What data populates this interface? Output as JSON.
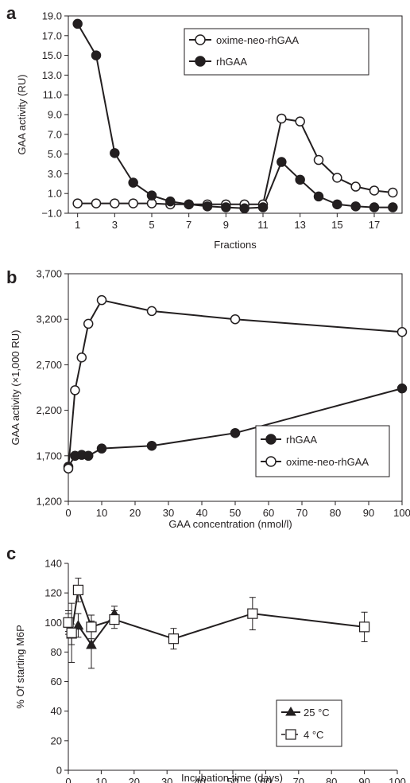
{
  "chart_data": [
    {
      "panel": "a",
      "type": "line",
      "xlabel": "Fractions",
      "ylabel": "GAA activity (RU)",
      "xlim": [
        0.5,
        18.5
      ],
      "ylim": [
        -1.0,
        19.0
      ],
      "xticks": [
        1,
        3,
        5,
        7,
        9,
        11,
        13,
        15,
        17
      ],
      "xtick_labels": [
        "1",
        "3",
        "5",
        "7",
        "9",
        "11",
        "13",
        "15",
        "17"
      ],
      "yticks": [
        -1.0,
        1.0,
        3.0,
        5.0,
        7.0,
        9.0,
        11.0,
        13.0,
        15.0,
        17.0,
        19.0
      ],
      "ytick_labels": [
        "−1.0",
        "1.0",
        "3.0",
        "5.0",
        "7.0",
        "9.0",
        "11.0",
        "13.0",
        "15.0",
        "17.0",
        "19.0"
      ],
      "legend_position": "top-right",
      "series": [
        {
          "name": "oxime-neo-rhGAA",
          "marker": "open-circle",
          "x": [
            1,
            2,
            3,
            4,
            5,
            6,
            7,
            8,
            9,
            10,
            11,
            12,
            13,
            14,
            15,
            16,
            17,
            18
          ],
          "y": [
            0.0,
            0.0,
            0.0,
            0.0,
            0.0,
            -0.1,
            -0.1,
            -0.1,
            -0.1,
            -0.1,
            -0.1,
            8.6,
            8.3,
            4.4,
            2.6,
            1.7,
            1.3,
            1.1
          ]
        },
        {
          "name": "rhGAA",
          "marker": "filled-circle",
          "x": [
            1,
            2,
            3,
            4,
            5,
            6,
            7,
            8,
            9,
            10,
            11,
            12,
            13,
            14,
            15,
            16,
            17,
            18
          ],
          "y": [
            18.2,
            15.0,
            5.1,
            2.1,
            0.8,
            0.2,
            -0.1,
            -0.3,
            -0.4,
            -0.5,
            -0.4,
            4.2,
            2.4,
            0.7,
            -0.1,
            -0.3,
            -0.4,
            -0.4
          ]
        }
      ]
    },
    {
      "panel": "b",
      "type": "line",
      "xlabel": "GAA concentration (nmol/l)",
      "ylabel": "GAA activity (×1,000 RU)",
      "xlim": [
        0,
        100
      ],
      "ylim": [
        1200,
        3700
      ],
      "xticks": [
        0,
        10,
        20,
        30,
        40,
        50,
        60,
        70,
        80,
        90,
        100
      ],
      "xtick_labels": [
        "0",
        "10",
        "20",
        "30",
        "40",
        "50",
        "60",
        "70",
        "80",
        "90",
        "100"
      ],
      "yticks": [
        1200,
        1700,
        2200,
        2700,
        3200,
        3700
      ],
      "ytick_labels": [
        "1,200",
        "1,700",
        "2,200",
        "2,700",
        "3,200",
        "3,700"
      ],
      "legend_position": "bottom-right",
      "series": [
        {
          "name": "rhGAA",
          "marker": "filled-circle",
          "x": [
            0,
            2,
            4,
            6,
            10,
            25,
            50,
            100
          ],
          "y": [
            1580,
            1700,
            1710,
            1700,
            1780,
            1810,
            1950,
            2440
          ]
        },
        {
          "name": "oxime-neo-rhGAA",
          "marker": "open-circle",
          "x": [
            0,
            2,
            4,
            6,
            10,
            25,
            50,
            100
          ],
          "y": [
            1560,
            2420,
            2780,
            3150,
            3410,
            3290,
            3200,
            3060
          ]
        }
      ]
    },
    {
      "panel": "c",
      "type": "line",
      "xlabel": "Incubation time (days)",
      "ylabel": "% Of starting M6P",
      "xlim": [
        0,
        100
      ],
      "ylim": [
        0,
        140
      ],
      "xticks": [
        0,
        10,
        20,
        30,
        40,
        50,
        60,
        70,
        80,
        90,
        100
      ],
      "xtick_labels": [
        "0",
        "10",
        "20",
        "30",
        "40",
        "50",
        "60",
        "70",
        "80",
        "90",
        "100"
      ],
      "yticks": [
        0,
        20,
        40,
        60,
        80,
        100,
        120,
        140
      ],
      "ytick_labels": [
        "0",
        "20",
        "40",
        "60",
        "80",
        "100",
        "120",
        "140"
      ],
      "legend_position": "bottom-right",
      "series": [
        {
          "name": "25 °C",
          "marker": "filled-triangle",
          "x": [
            0,
            1,
            3,
            7,
            14
          ],
          "y": [
            100,
            92,
            98,
            85,
            106
          ],
          "err": [
            6,
            7,
            8,
            16,
            5
          ]
        },
        {
          "name": "4 °C",
          "marker": "open-square",
          "x": [
            0,
            1,
            3,
            7,
            14,
            32,
            56,
            90
          ],
          "y": [
            100,
            93,
            122,
            97,
            102,
            89,
            106,
            97
          ],
          "err": [
            8,
            20,
            8,
            8,
            6,
            7,
            11,
            10
          ]
        }
      ]
    }
  ]
}
